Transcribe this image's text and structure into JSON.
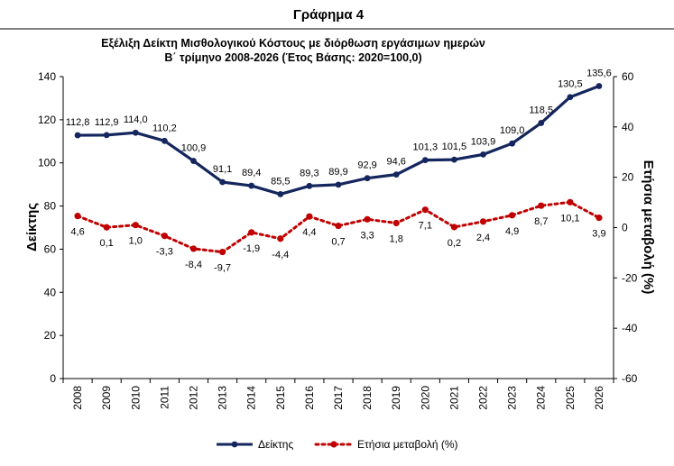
{
  "figure_label": "Γράφημα 4",
  "chart_data": {
    "type": "line",
    "title": "Εξέλιξη Δείκτη Μισθολογικού Κόστους με διόρθωση εργάσιμων ημερών",
    "subtitle": "Β΄ τρίμηνο 2008-2026 (Έτος Βάσης: 2020=100,0)",
    "x": [
      "2008",
      "2009",
      "2010",
      "2011",
      "2012",
      "2013",
      "2014",
      "2015",
      "2016",
      "2017",
      "2018",
      "2019",
      "2020",
      "2021",
      "2022",
      "2023",
      "2024",
      "2025",
      "2026"
    ],
    "ylabel": "Δείκτης",
    "y2label": "Ετήσια μεταβολή (%)",
    "ylim": [
      0,
      140
    ],
    "y_ticks": [
      "0",
      "20",
      "40",
      "60",
      "80",
      "100",
      "120",
      "140"
    ],
    "y2lim": [
      -60,
      60
    ],
    "y2_ticks": [
      "-60",
      "-40",
      "-20",
      "0",
      "20",
      "40",
      "60"
    ],
    "grid": false,
    "legend_position": "bottom",
    "series": [
      {
        "name": "Δείκτης",
        "axis": "left",
        "style": "solid",
        "color": "#14265e",
        "values": [
          112.8,
          112.9,
          114.0,
          110.2,
          100.9,
          91.1,
          89.4,
          85.5,
          89.3,
          89.9,
          92.9,
          94.6,
          101.3,
          101.5,
          103.9,
          109.0,
          118.5,
          130.5,
          135.6
        ],
        "labels": [
          "112,8",
          "112,9",
          "114,0",
          "110,2",
          "100,9",
          "91,1",
          "89,4",
          "85,5",
          "89,3",
          "89,9",
          "92,9",
          "94,6",
          "101,3",
          "101,5",
          "103,9",
          "109,0",
          "118,5",
          "130,5",
          "135,6"
        ]
      },
      {
        "name": "Ετήσια μεταβολή (%)",
        "axis": "right",
        "style": "dotted",
        "color": "#c00000",
        "values": [
          4.6,
          0.1,
          1.0,
          -3.3,
          -8.4,
          -9.7,
          -1.9,
          -4.4,
          4.4,
          0.7,
          3.3,
          1.8,
          7.1,
          0.2,
          2.4,
          4.9,
          8.7,
          10.1,
          3.9
        ],
        "labels": [
          "4,6",
          "0,1",
          "1,0",
          "-3,3",
          "-8,4",
          "-9,7",
          "-1,9",
          "-4,4",
          "4,4",
          "0,7",
          "3,3",
          "1,8",
          "7,1",
          "0,2",
          "2,4",
          "4,9",
          "8,7",
          "10,1",
          "3,9"
        ]
      }
    ]
  }
}
